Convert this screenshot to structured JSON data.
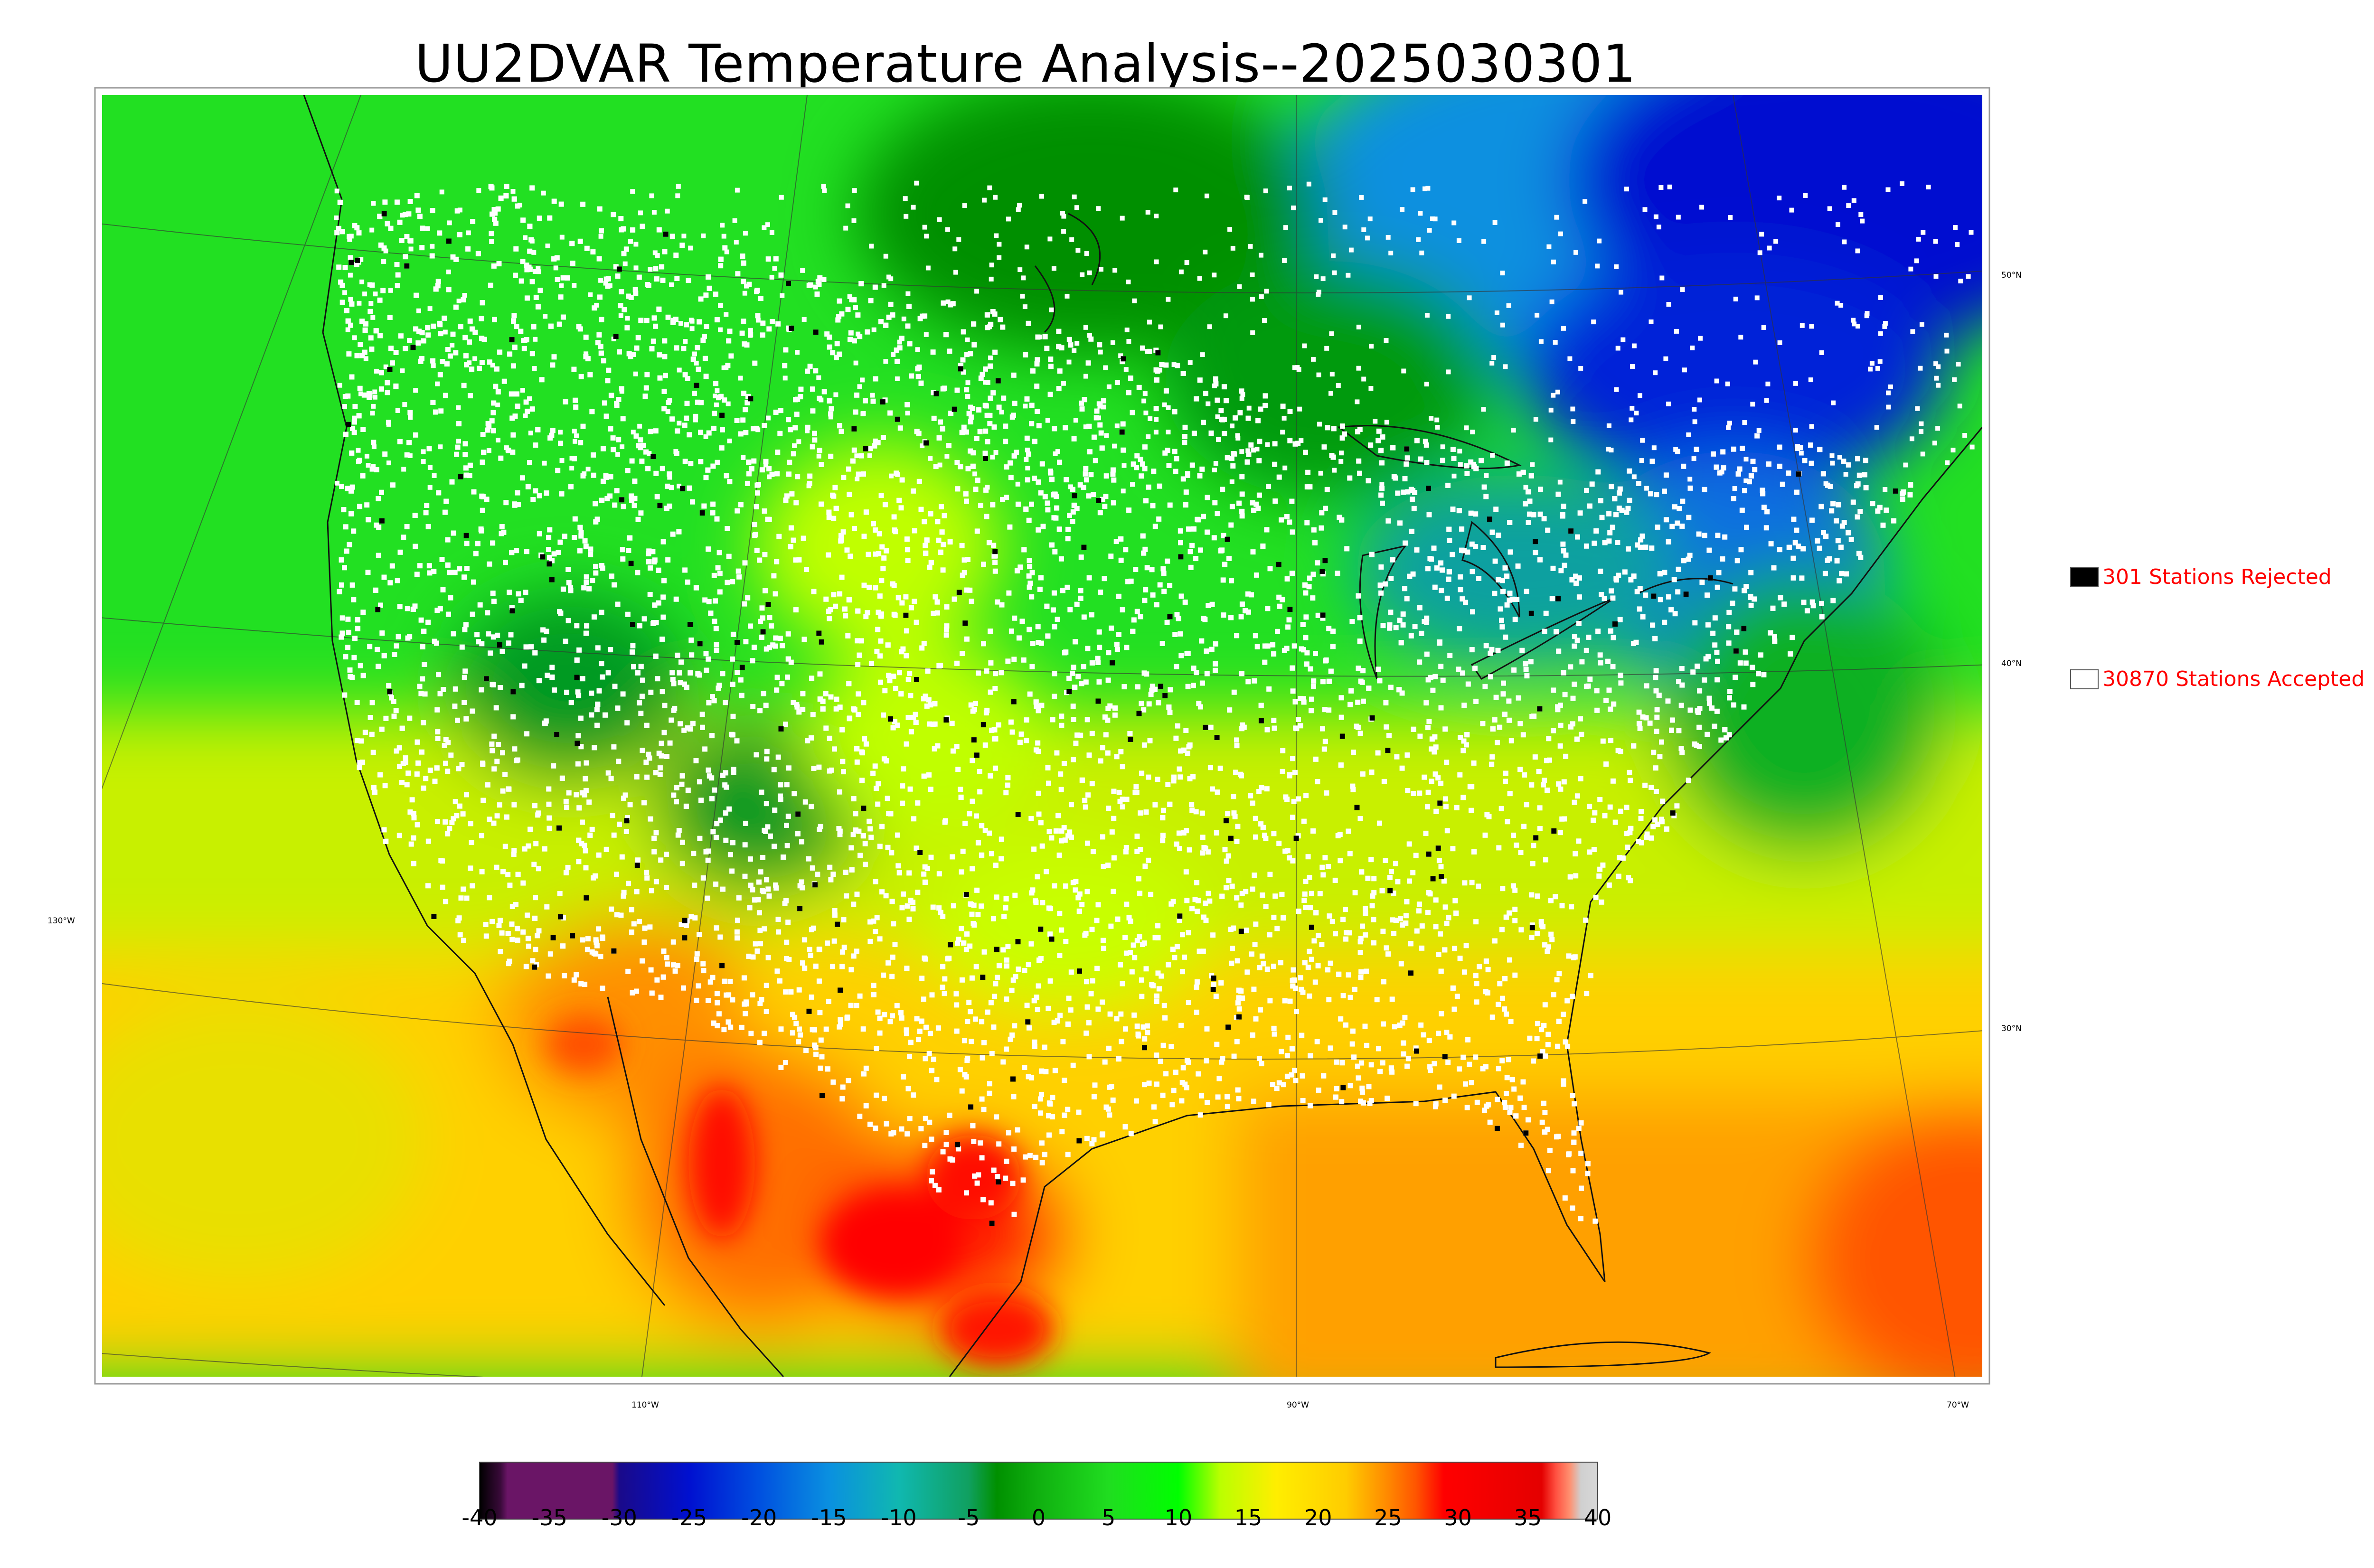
{
  "title": "UU2DVAR Temperature Analysis--2025030301",
  "legend": {
    "rejected_label": "301 Stations Rejected",
    "accepted_label": "30870 Stations Accepted",
    "rejected_color": "#000000",
    "accepted_color": "#ffffff"
  },
  "colorbar": {
    "ticks": [
      "-40",
      "-35",
      "-30",
      "-25",
      "-20",
      "-15",
      "-10",
      "-5",
      "0",
      "5",
      "10",
      "15",
      "20",
      "25",
      "30",
      "35",
      "40"
    ],
    "range": [
      -40,
      40
    ],
    "stops": [
      {
        "v": -40,
        "c": "#000000"
      },
      {
        "v": -38.5,
        "c": "#3a0a3a"
      },
      {
        "v": -38,
        "c": "#6a1566"
      },
      {
        "v": -30.5,
        "c": "#6a1566"
      },
      {
        "v": -30,
        "c": "#1a0a8a"
      },
      {
        "v": -25,
        "c": "#0010d0"
      },
      {
        "v": -20,
        "c": "#0050e0"
      },
      {
        "v": -15,
        "c": "#0a90e0"
      },
      {
        "v": -10,
        "c": "#10b8b0"
      },
      {
        "v": -5,
        "c": "#10a060"
      },
      {
        "v": -3,
        "c": "#009000"
      },
      {
        "v": 0,
        "c": "#10b010"
      },
      {
        "v": 5,
        "c": "#20dd20"
      },
      {
        "v": 10,
        "c": "#00ff00"
      },
      {
        "v": 13,
        "c": "#bbff00"
      },
      {
        "v": 17,
        "c": "#ffee00"
      },
      {
        "v": 22,
        "c": "#ffcc00"
      },
      {
        "v": 25,
        "c": "#ff8800"
      },
      {
        "v": 27,
        "c": "#ff5500"
      },
      {
        "v": 29,
        "c": "#ff0000"
      },
      {
        "v": 36,
        "c": "#e40000"
      },
      {
        "v": 37,
        "c": "#ff5040"
      },
      {
        "v": 38,
        "c": "#ff9070"
      },
      {
        "v": 38.8,
        "c": "#d0d0d0"
      },
      {
        "v": 40,
        "c": "#d8d8d8"
      }
    ]
  },
  "graticule_labels": {
    "lat": [
      "50°N",
      "40°N",
      "30°N"
    ],
    "lon": [
      "130°W",
      "110°W",
      "90°W",
      "70°W"
    ]
  },
  "colors": {
    "cold_blue": "#0010d0",
    "mid_green": "#10b010",
    "bright_green": "#00ff00",
    "yellow": "#ffee00",
    "orange": "#ff8800",
    "hot_red": "#ff0000"
  }
}
